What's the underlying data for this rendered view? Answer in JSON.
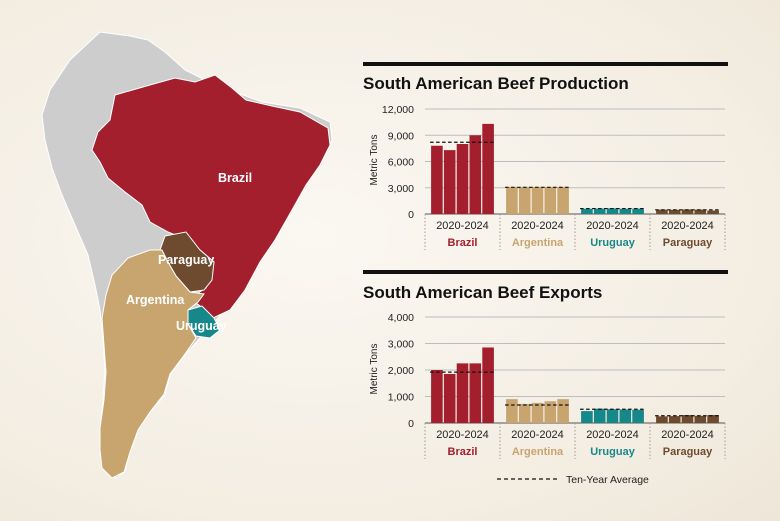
{
  "colors": {
    "Brazil": "#a41f2e",
    "Argentina": "#c8a46e",
    "Uruguay": "#17888a",
    "Paraguay": "#6e4a2e",
    "continent": "#cdcdcd"
  },
  "map": {
    "labels": [
      "Brazil",
      "Paraguay",
      "Argentina",
      "Uruguay"
    ]
  },
  "legend": {
    "label": "Ten-Year Average"
  },
  "chart_data": [
    {
      "type": "bar",
      "title": "South American Beef Production",
      "ylabel": "Metric Tons",
      "ylim": [
        0,
        12000
      ],
      "yticks": [
        "0",
        "3,000",
        "6,000",
        "9,000",
        "12,000"
      ],
      "ytick_values": [
        0,
        3000,
        6000,
        9000,
        12000
      ],
      "groups": [
        {
          "name": "Brazil",
          "period": "2020-2024",
          "values": [
            7800,
            7300,
            8000,
            9000,
            10300
          ],
          "average": 8200
        },
        {
          "name": "Argentina",
          "period": "2020-2024",
          "values": [
            3100,
            3100,
            3100,
            3100,
            3100
          ],
          "average": 3050
        },
        {
          "name": "Uruguay",
          "period": "2020-2024",
          "values": [
            600,
            620,
            650,
            600,
            620
          ],
          "average": 620
        },
        {
          "name": "Paraguay",
          "period": "2020-2024",
          "values": [
            500,
            480,
            520,
            500,
            400
          ],
          "average": 480
        }
      ]
    },
    {
      "type": "bar",
      "title": "South American Beef Exports",
      "ylabel": "Metric Tons",
      "ylim": [
        0,
        4000
      ],
      "yticks": [
        "0",
        "1,000",
        "2,000",
        "3,000",
        "4,000"
      ],
      "ytick_values": [
        0,
        1000,
        2000,
        3000,
        4000
      ],
      "groups": [
        {
          "name": "Brazil",
          "period": "2020-2024",
          "values": [
            2000,
            1850,
            2250,
            2250,
            2850
          ],
          "average": 1920
        },
        {
          "name": "Argentina",
          "period": "2020-2024",
          "values": [
            900,
            720,
            760,
            820,
            900
          ],
          "average": 680
        },
        {
          "name": "Uruguay",
          "period": "2020-2024",
          "values": [
            450,
            540,
            520,
            510,
            500
          ],
          "average": 520
        },
        {
          "name": "Paraguay",
          "period": "2020-2024",
          "values": [
            250,
            260,
            300,
            270,
            300
          ],
          "average": 275
        }
      ]
    }
  ]
}
